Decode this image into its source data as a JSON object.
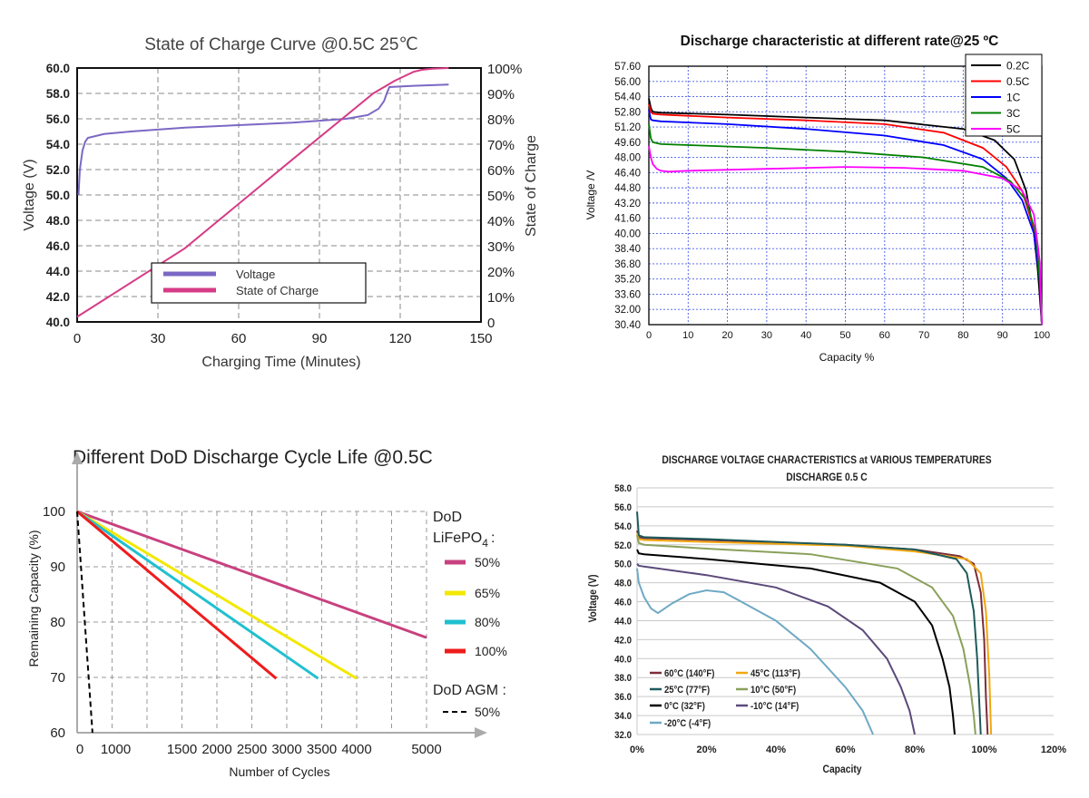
{
  "chart_data": [
    {
      "type": "line",
      "title": "State of Charge Curve @0.5C 25℃",
      "xlabel": "Charging Time (Minutes)",
      "ylabel": "Voltage (V)",
      "y2label": "State of Charge",
      "xlim": [
        0,
        150
      ],
      "ylim": [
        40,
        60
      ],
      "y2lim": [
        0,
        100
      ],
      "xticks": [
        "0",
        "30",
        "60",
        "90",
        "120",
        "150"
      ],
      "yticks": [
        "40.0",
        "42.0",
        "44.0",
        "46.0",
        "48.0",
        "50.0",
        "52.0",
        "54.0",
        "56.0",
        "58.0",
        "60.0"
      ],
      "y2ticks": [
        "0",
        "10%",
        "20%",
        "30%",
        "40%",
        "50%",
        "60%",
        "70%",
        "80%",
        "90%",
        "100%"
      ],
      "legend": [
        "Voltage",
        "State of Charge"
      ],
      "series": [
        {
          "name": "Voltage",
          "axis": "left",
          "color": "#7b68c4",
          "x": [
            0.5,
            1,
            2,
            3,
            4,
            6,
            10,
            20,
            40,
            60,
            80,
            100,
            108,
            112,
            114,
            115,
            116,
            125,
            138
          ],
          "y": [
            50.0,
            52.0,
            53.5,
            54.2,
            54.5,
            54.6,
            54.8,
            55.0,
            55.3,
            55.5,
            55.7,
            56.0,
            56.3,
            56.8,
            57.4,
            58.0,
            58.5,
            58.6,
            58.7
          ]
        },
        {
          "name": "State of Charge",
          "axis": "right",
          "color": "#d63b86",
          "x": [
            0,
            40,
            80,
            110,
            118,
            122,
            125,
            128,
            132,
            138
          ],
          "y": [
            2,
            29,
            64,
            90,
            95,
            97,
            98.5,
            99.3,
            99.7,
            100
          ]
        }
      ]
    },
    {
      "type": "line",
      "title": "Discharge characteristic at different rate@25 ºC",
      "xlabel": "Capacity  %",
      "ylabel": "Voltage /V",
      "xlim": [
        0,
        100
      ],
      "ylim": [
        30.4,
        57.6
      ],
      "xticks": [
        "0",
        "10",
        "20",
        "30",
        "40",
        "50",
        "60",
        "70",
        "80",
        "90",
        "100"
      ],
      "yticks": [
        "30.40",
        "32.00",
        "33.60",
        "35.20",
        "36.80",
        "38.40",
        "40.00",
        "41.60",
        "43.20",
        "44.80",
        "46.40",
        "48.00",
        "49.60",
        "51.20",
        "52.80",
        "54.40",
        "56.00",
        "57.60"
      ],
      "legend": [
        "0.2C",
        "0.5C",
        "1C",
        "3C",
        "5C"
      ],
      "series": [
        {
          "name": "0.2C",
          "color": "#000000",
          "x": [
            0,
            0.5,
            1,
            3,
            20,
            40,
            60,
            80,
            88,
            93,
            96,
            98,
            99,
            100
          ],
          "y": [
            54.2,
            53.2,
            52.8,
            52.7,
            52.5,
            52.2,
            51.9,
            51.0,
            49.8,
            47.8,
            44.5,
            40.0,
            36.0,
            30.4
          ]
        },
        {
          "name": "0.5C",
          "color": "#ff0000",
          "x": [
            0,
            0.5,
            1,
            3,
            20,
            40,
            60,
            75,
            85,
            91,
            95,
            98,
            99.5,
            100
          ],
          "y": [
            53.6,
            52.8,
            52.6,
            52.5,
            52.2,
            51.9,
            51.5,
            50.6,
            49.0,
            47.0,
            44.5,
            40.5,
            36.0,
            30.4
          ]
        },
        {
          "name": "1C",
          "color": "#0000ff",
          "x": [
            0,
            0.5,
            1,
            3,
            20,
            40,
            60,
            75,
            85,
            91,
            95,
            98,
            99.5,
            100
          ],
          "y": [
            53.0,
            52.0,
            51.9,
            51.8,
            51.5,
            51.0,
            50.3,
            49.3,
            47.8,
            45.8,
            43.5,
            40.0,
            35.0,
            30.4
          ]
        },
        {
          "name": "3C",
          "color": "#008000",
          "x": [
            0,
            0.5,
            1,
            3,
            10,
            30,
            50,
            70,
            85,
            92,
            96,
            98.5,
            99.5,
            100
          ],
          "y": [
            51.5,
            50.0,
            49.6,
            49.4,
            49.3,
            49.0,
            48.6,
            48.0,
            47.0,
            45.5,
            43.5,
            40.0,
            35.0,
            30.4
          ]
        },
        {
          "name": "5C",
          "color": "#ff00ff",
          "x": [
            0,
            0.5,
            1,
            2,
            3,
            5,
            10,
            30,
            50,
            65,
            80,
            90,
            95,
            98,
            99.5,
            100
          ],
          "y": [
            49.2,
            48.0,
            47.3,
            46.8,
            46.6,
            46.5,
            46.6,
            46.8,
            47.0,
            46.9,
            46.6,
            45.8,
            44.5,
            42.0,
            37.0,
            30.4
          ]
        }
      ]
    },
    {
      "type": "line",
      "title": "Different DoD Discharge Cycle Life @0.5C",
      "xlabel": "Number of Cycles",
      "ylabel": "Remaining Capacity (%)",
      "xlim": [
        0,
        5000
      ],
      "ylim": [
        60,
        100
      ],
      "xticks": [
        "0",
        "1000",
        "1500",
        "2000",
        "2500",
        "3000",
        "3500",
        "4000",
        "5000"
      ],
      "yticks": [
        "60",
        "70",
        "80",
        "90",
        "100"
      ],
      "legend_title_1": "DoD",
      "legend_title_2_main": "LiFePO",
      "legend_title_2_sub": "4",
      "legend_title_2_suffix": ":",
      "legend_title_3": "DoD AGM :",
      "legend": [
        "50%",
        "65%",
        "80%",
        "100%",
        "50%"
      ],
      "series": [
        {
          "name": "50%",
          "color": "#c8417f",
          "dash": false,
          "x": [
            0,
            5000
          ],
          "y": [
            100,
            77.2
          ]
        },
        {
          "name": "65%",
          "color": "#f2e800",
          "dash": false,
          "x": [
            0,
            4000
          ],
          "y": [
            100,
            69.8
          ]
        },
        {
          "name": "80%",
          "color": "#1fc0d0",
          "dash": false,
          "x": [
            0,
            3450
          ],
          "y": [
            100,
            69.8
          ]
        },
        {
          "name": "100%",
          "color": "#ee1c1c",
          "dash": false,
          "x": [
            0,
            2850
          ],
          "y": [
            100,
            69.8
          ]
        },
        {
          "name": "50%",
          "color": "#000000",
          "dash": true,
          "x": [
            0,
            220
          ],
          "y": [
            100,
            60
          ]
        }
      ]
    },
    {
      "type": "line",
      "title": "DISCHARGE VOLTAGE CHARACTERISTICS at VARIOUS TEMPERATURES",
      "subtitle": "DISCHARGE 0.5 C",
      "xlabel": "Capacity",
      "ylabel": "Voltage (V)",
      "xlim": [
        0,
        120
      ],
      "ylim": [
        32,
        58
      ],
      "xticks": [
        "0%",
        "20%",
        "40%",
        "60%",
        "80%",
        "100%",
        "120%"
      ],
      "yticks": [
        "32.0",
        "34.0",
        "36.0",
        "38.0",
        "40.0",
        "42.0",
        "44.0",
        "46.0",
        "48.0",
        "50.0",
        "52.0",
        "54.0",
        "56.0",
        "58.0"
      ],
      "legend": [
        "60°C (140°F)",
        "45°C (113°F)",
        "25°C (77°F)",
        "10°C (50°F)",
        "0°C (32°F)",
        "-10°C (14°F)",
        "-20°C (-4°F)"
      ],
      "series": [
        {
          "name": "60°C (140°F)",
          "color": "#7a2e3a",
          "x": [
            0,
            0.5,
            2,
            20,
            60,
            80,
            93,
            97,
            99,
            100,
            100.5,
            101
          ],
          "y": [
            53.5,
            52.8,
            52.7,
            52.5,
            52.0,
            51.5,
            50.8,
            50.0,
            47.0,
            42.0,
            36.0,
            32.0
          ]
        },
        {
          "name": "45°C (113°F)",
          "color": "#f2a60f",
          "x": [
            0,
            0.5,
            2,
            20,
            60,
            80,
            95,
            99,
            100.5,
            101.5,
            102
          ],
          "y": [
            53.2,
            52.6,
            52.5,
            52.3,
            51.9,
            51.3,
            50.5,
            49.0,
            45.0,
            38.0,
            32.0
          ]
        },
        {
          "name": "25°C (77°F)",
          "color": "#1e5b5a",
          "x": [
            0,
            0.5,
            2,
            20,
            60,
            80,
            92,
            95,
            97,
            98,
            98.5,
            99
          ],
          "y": [
            55.5,
            53.0,
            52.8,
            52.6,
            52.0,
            51.5,
            50.5,
            49.0,
            45.0,
            40.0,
            36.0,
            32.0
          ]
        },
        {
          "name": "10°C (50°F)",
          "color": "#8aa05a",
          "x": [
            0,
            0.5,
            2,
            20,
            50,
            75,
            85,
            91,
            94,
            96,
            97,
            97.5
          ],
          "y": [
            53.0,
            52.2,
            52.0,
            51.6,
            51.0,
            49.5,
            47.5,
            44.5,
            41.0,
            37.0,
            34.0,
            32.0
          ]
        },
        {
          "name": "0°C (32°F)",
          "color": "#000000",
          "x": [
            0,
            0.5,
            2,
            20,
            50,
            70,
            80,
            85,
            88,
            90,
            91,
            91.5
          ],
          "y": [
            51.5,
            51.1,
            51.0,
            50.5,
            49.5,
            48.0,
            46.0,
            43.5,
            40.0,
            37.0,
            34.0,
            32.0
          ]
        },
        {
          "name": "-10°C (14°F)",
          "color": "#5b4a7a",
          "x": [
            0,
            0.5,
            2,
            20,
            40,
            55,
            65,
            72,
            76,
            78.5,
            80
          ],
          "y": [
            50.0,
            49.8,
            49.7,
            48.8,
            47.5,
            45.5,
            43.0,
            40.0,
            37.0,
            34.5,
            32.0
          ]
        },
        {
          "name": "-20°C (-4°F)",
          "color": "#6ea9c4",
          "x": [
            0,
            0.5,
            2,
            4,
            6,
            10,
            15,
            20,
            25,
            30,
            40,
            50,
            60,
            65,
            68
          ],
          "y": [
            49.5,
            48.0,
            46.5,
            45.3,
            44.8,
            45.8,
            46.8,
            47.2,
            47.0,
            46.0,
            44.0,
            41.0,
            37.0,
            34.5,
            32.0
          ]
        }
      ]
    }
  ]
}
